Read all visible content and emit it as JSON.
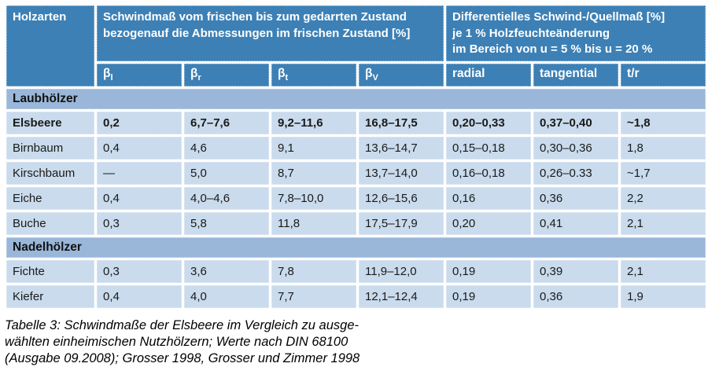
{
  "colors": {
    "header_blue": "#3d80b5",
    "section_blue": "#9ab7d9",
    "row_blue": "#c9dbec",
    "text_dark": "#1a1a1a",
    "header_text": "#ffffff"
  },
  "table": {
    "corner_header": "Holzarten",
    "group_headers": [
      {
        "label": "Schwindmaß vom frischen bis zum gedarrten Zustand\nbezogenauf die Abmessungen im frischen Zustand [%]"
      },
      {
        "label": "Differentielles Schwind-/Quellmaß [%]\nje 1 % Holzfeuchteänderung\nim Bereich von u = 5 % bis u = 20 %"
      }
    ],
    "subheaders": [
      {
        "base": "β",
        "sub": "l"
      },
      {
        "base": "β",
        "sub": "r"
      },
      {
        "base": "β",
        "sub": "t"
      },
      {
        "base": "β",
        "sub": "V"
      },
      {
        "base": "radial",
        "sub": ""
      },
      {
        "base": "tangential",
        "sub": ""
      },
      {
        "base": "t/r",
        "sub": ""
      }
    ],
    "sections": [
      {
        "title": "Laubhölzer",
        "rows": [
          {
            "name": "Elsbeere",
            "bold": true,
            "values": [
              "0,2",
              "6,7–7,6",
              "9,2–11,6",
              "16,8–17,5",
              "0,20–0,33",
              "0,37–0,40",
              "~1,8"
            ]
          },
          {
            "name": "Birnbaum",
            "bold": false,
            "values": [
              "0,4",
              "4,6",
              "9,1",
              "13,6–14,7",
              "0,15–0,18",
              "0,30–0,36",
              "1,8"
            ]
          },
          {
            "name": "Kirschbaum",
            "bold": false,
            "values": [
              "—",
              "5,0",
              "8,7",
              "13,7–14,0",
              "0,16–0,18",
              "0,26–0.33",
              "~1,7"
            ]
          },
          {
            "name": "Eiche",
            "bold": false,
            "values": [
              "0,4",
              "4,0–4,6",
              "7,8–10,0",
              "12,6–15,6",
              "0,16",
              "0,36",
              "2,2"
            ]
          },
          {
            "name": "Buche",
            "bold": false,
            "values": [
              "0,3",
              "5,8",
              "11,8",
              "17,5–17,9",
              "0,20",
              "0,41",
              "2,1"
            ]
          }
        ]
      },
      {
        "title": "Nadelhölzer",
        "rows": [
          {
            "name": "Fichte",
            "bold": false,
            "values": [
              "0,3",
              "3,6",
              "7,8",
              "11,9–12,0",
              "0,19",
              "0,39",
              "2,1"
            ]
          },
          {
            "name": "Kiefer",
            "bold": false,
            "values": [
              "0,4",
              "4,0",
              "7,7",
              "12,1–12,4",
              "0,19",
              "0,36",
              "1,9"
            ]
          }
        ]
      }
    ]
  },
  "caption": "Tabelle 3: Schwindmaße der Elsbeere im Vergleich zu ausge-\nwählten einheimischen Nutzhölzern; Werte nach DIN 68100\n(Ausgabe 09.2008); Grosser 1998, Grosser und Zimmer 1998"
}
